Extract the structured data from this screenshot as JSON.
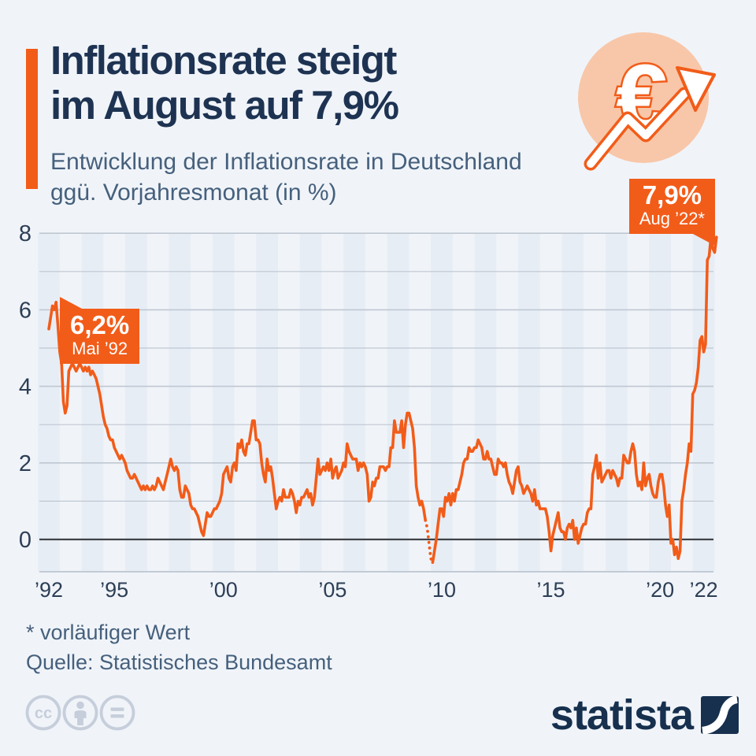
{
  "header": {
    "title_line1": "Inflationsrate steigt",
    "title_line2": "im August auf 7,9%",
    "subtitle_line1": "Entwicklung der Inflationsrate in Deutschland",
    "subtitle_line2": "ggü. Vorjahresmonat (in %)",
    "accent_color": "#f25c19",
    "brand_navy": "#1e3352"
  },
  "icon": {
    "euro_symbol": "€"
  },
  "callouts": {
    "start": {
      "value": "6,2%",
      "label": "Mai ’92"
    },
    "end": {
      "value": "7,9%",
      "label": "Aug ’22*"
    }
  },
  "chart_data": {
    "type": "line",
    "title": "Inflationsrate in Deutschland ggü. Vorjahresmonat (in %)",
    "x_unit": "month",
    "x_start": "Jan 1992",
    "x_end": "Aug 2022",
    "ylim": [
      -0.85,
      8.3
    ],
    "yticks": [
      0,
      2,
      4,
      6,
      8
    ],
    "xticks": [
      {
        "year": 1992,
        "label": "’92"
      },
      {
        "year": 1995,
        "label": "’95"
      },
      {
        "year": 2000,
        "label": "’00"
      },
      {
        "year": 2005,
        "label": "’05"
      },
      {
        "year": 2010,
        "label": "’10"
      },
      {
        "year": 2015,
        "label": "’15"
      },
      {
        "year": 2020,
        "label": "’20"
      },
      {
        "year": 2022,
        "label": "’22"
      }
    ],
    "line_color": "#f25c19",
    "stripe_color": "#e7edf5",
    "grid_color": "#bfc7d1",
    "zero_line_color": "#3f4347",
    "dotted_month_indices": [
      207,
      211
    ],
    "monthly_values": [
      5.5,
      5.8,
      6.1,
      6.0,
      6.2,
      5.6,
      4.9,
      4.6,
      3.6,
      3.3,
      3.5,
      4.4,
      4.5,
      4.6,
      4.5,
      4.4,
      4.5,
      4.6,
      4.5,
      4.4,
      4.5,
      4.4,
      4.5,
      4.3,
      4.4,
      4.3,
      4.2,
      4.0,
      3.8,
      3.5,
      3.2,
      3.0,
      2.9,
      2.7,
      2.6,
      2.6,
      2.4,
      2.3,
      2.2,
      2.1,
      2.2,
      2.1,
      2.0,
      1.8,
      1.7,
      1.6,
      1.6,
      1.7,
      1.6,
      1.5,
      1.4,
      1.3,
      1.4,
      1.3,
      1.4,
      1.3,
      1.3,
      1.4,
      1.3,
      1.4,
      1.6,
      1.5,
      1.4,
      1.3,
      1.5,
      1.7,
      1.9,
      2.1,
      1.9,
      1.8,
      1.9,
      1.8,
      1.3,
      1.1,
      1.1,
      1.4,
      1.3,
      1.2,
      0.9,
      0.8,
      0.8,
      0.7,
      0.6,
      0.4,
      0.2,
      0.1,
      0.4,
      0.7,
      0.6,
      0.6,
      0.7,
      0.8,
      0.8,
      0.9,
      1.0,
      1.2,
      1.7,
      1.8,
      1.9,
      1.6,
      1.5,
      1.9,
      2.0,
      1.8,
      2.5,
      2.4,
      2.6,
      2.3,
      2.2,
      2.5,
      2.5,
      2.8,
      3.1,
      3.1,
      2.6,
      2.6,
      2.5,
      2.0,
      1.7,
      1.5,
      2.1,
      1.8,
      1.9,
      1.6,
      1.2,
      0.8,
      1.0,
      1.1,
      1.0,
      1.3,
      1.1,
      1.1,
      1.1,
      1.3,
      1.2,
      1.0,
      0.7,
      1.0,
      0.9,
      1.1,
      1.1,
      1.2,
      1.3,
      1.1,
      1.2,
      0.9,
      1.1,
      1.6,
      2.1,
      1.7,
      1.8,
      1.9,
      1.8,
      2.0,
      1.8,
      2.1,
      1.6,
      1.8,
      1.9,
      1.6,
      1.7,
      1.8,
      2.0,
      1.9,
      2.5,
      2.3,
      2.2,
      2.1,
      2.1,
      2.1,
      1.8,
      2.0,
      1.9,
      2.0,
      1.9,
      1.7,
      1.0,
      1.1,
      1.5,
      1.4,
      1.6,
      1.6,
      1.9,
      1.9,
      1.9,
      1.8,
      1.9,
      1.9,
      2.4,
      2.4,
      3.1,
      2.8,
      2.8,
      2.8,
      3.1,
      2.4,
      3.0,
      3.3,
      3.3,
      3.1,
      2.9,
      2.4,
      1.4,
      1.1,
      0.9,
      1.0,
      0.8,
      0.5,
      0.3,
      -0.1,
      -0.5,
      -0.6,
      -0.3,
      0.0,
      0.4,
      0.8,
      0.8,
      0.6,
      1.1,
      1.0,
      1.2,
      0.9,
      1.2,
      1.0,
      1.3,
      1.3,
      1.5,
      1.7,
      2.0,
      2.1,
      2.1,
      2.4,
      2.3,
      2.3,
      2.4,
      2.4,
      2.6,
      2.5,
      2.4,
      2.1,
      2.1,
      2.3,
      2.1,
      2.1,
      1.9,
      1.7,
      1.7,
      2.1,
      2.0,
      2.0,
      1.9,
      2.0,
      1.7,
      1.5,
      1.4,
      1.2,
      1.5,
      1.8,
      1.9,
      1.5,
      1.4,
      1.2,
      1.3,
      1.4,
      1.3,
      1.2,
      1.0,
      1.3,
      0.9,
      1.0,
      0.8,
      0.8,
      0.8,
      0.8,
      0.6,
      0.2,
      -0.3,
      0.1,
      0.3,
      0.5,
      0.7,
      0.3,
      0.2,
      0.2,
      0.0,
      0.3,
      0.4,
      0.3,
      0.5,
      0.0,
      0.3,
      -0.1,
      0.1,
      0.3,
      0.4,
      0.4,
      0.7,
      0.8,
      0.8,
      1.7,
      1.9,
      2.2,
      1.6,
      2.0,
      1.5,
      1.6,
      1.7,
      1.8,
      1.8,
      1.6,
      1.8,
      1.7,
      1.6,
      1.4,
      1.6,
      1.6,
      2.2,
      2.1,
      2.0,
      2.0,
      2.3,
      2.5,
      2.3,
      1.7,
      1.4,
      1.5,
      1.3,
      2.0,
      1.4,
      1.6,
      1.7,
      1.4,
      1.2,
      1.1,
      1.1,
      1.5,
      1.7,
      1.7,
      1.4,
      0.9,
      0.6,
      0.9,
      -0.1,
      0.0,
      -0.4,
      -0.2,
      -0.5,
      -0.3,
      1.0,
      1.3,
      1.7,
      2.0,
      2.5,
      2.3,
      3.8,
      3.9,
      4.1,
      4.5,
      5.2,
      5.3,
      4.9,
      5.1,
      7.3,
      7.4,
      7.9,
      7.6,
      7.5,
      7.9
    ]
  },
  "footer": {
    "note": "* vorläufiger Wert",
    "source": "Quelle: Statistisches Bundesamt"
  },
  "branding": {
    "logo_text": "statista",
    "license_icons": [
      "cc",
      "by",
      "nd"
    ]
  }
}
